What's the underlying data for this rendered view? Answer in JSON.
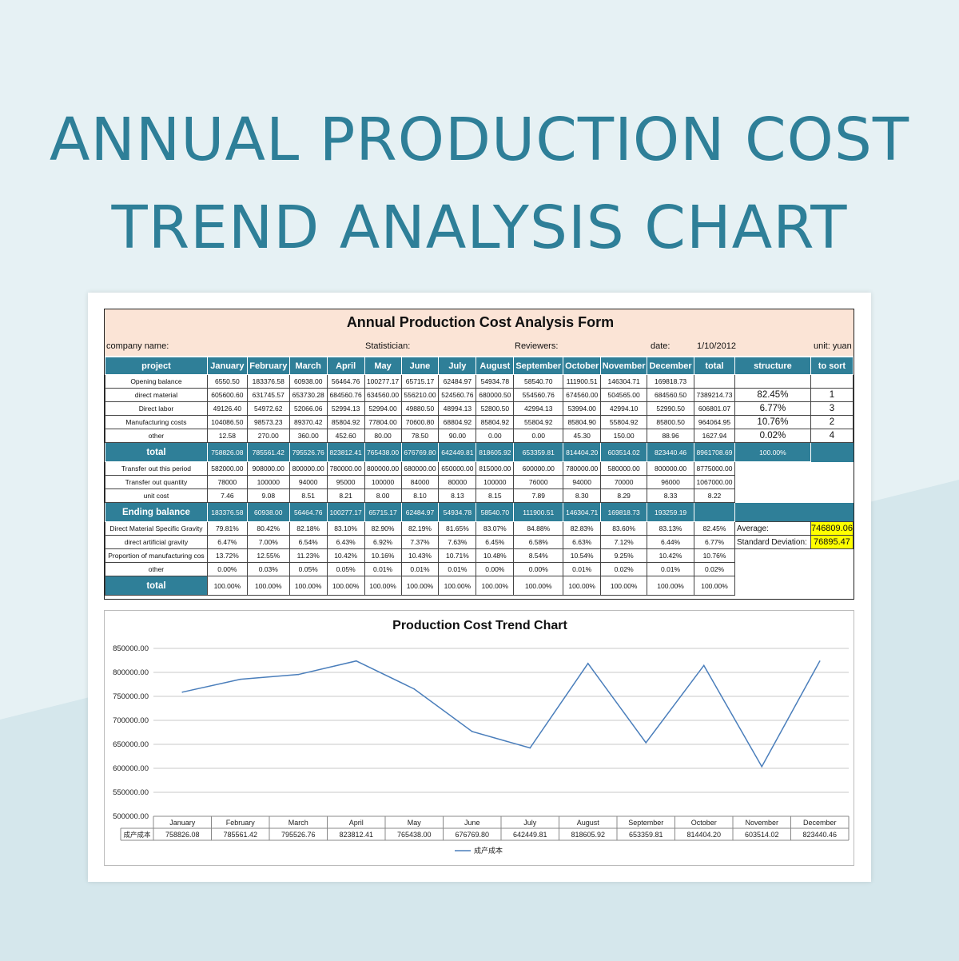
{
  "hero_title_line1": "ANNUAL PRODUCTION COST",
  "hero_title_line2": "TREND ANALYSIS CHART",
  "form": {
    "title": "Annual Production Cost Analysis Form",
    "company_label": "company name:",
    "statistician_label": "Statistician:",
    "reviewers_label": "Reviewers:",
    "date_label": "date:",
    "date_value": "1/10/2012",
    "unit_label": "unit: yuan"
  },
  "headers": [
    "project",
    "January",
    "February",
    "March",
    "April",
    "May",
    "June",
    "July",
    "August",
    "September",
    "October",
    "November",
    "December",
    "total",
    "structure",
    "to sort"
  ],
  "rows": [
    {
      "label": "Opening balance",
      "values": [
        "6550.50",
        "183376.58",
        "60938.00",
        "56464.76",
        "100277.17",
        "65715.17",
        "62484.97",
        "54934.78",
        "58540.70",
        "111900.51",
        "146304.71",
        "169818.73"
      ],
      "total": "",
      "structure": "",
      "sort": ""
    },
    {
      "label": "direct material",
      "values": [
        "605600.60",
        "631745.57",
        "653730.28",
        "684560.76",
        "634560.00",
        "556210.00",
        "524560.76",
        "680000.50",
        "554560.76",
        "674560.00",
        "504565.00",
        "684560.50"
      ],
      "total": "7389214.73",
      "structure": "82.45%",
      "sort": "1"
    },
    {
      "label": "Direct labor",
      "values": [
        "49126.40",
        "54972.62",
        "52066.06",
        "52994.13",
        "52994.00",
        "49880.50",
        "48994.13",
        "52800.50",
        "42994.13",
        "53994.00",
        "42994.10",
        "52990.50"
      ],
      "total": "606801.07",
      "structure": "6.77%",
      "sort": "3"
    },
    {
      "label": "Manufacturing costs",
      "values": [
        "104086.50",
        "98573.23",
        "89370.42",
        "85804.92",
        "77804.00",
        "70600.80",
        "68804.92",
        "85804.92",
        "55804.92",
        "85804.90",
        "55804.92",
        "85800.50"
      ],
      "total": "964064.95",
      "structure": "10.76%",
      "sort": "2"
    },
    {
      "label": "other",
      "values": [
        "12.58",
        "270.00",
        "360.00",
        "452.60",
        "80.00",
        "78.50",
        "90.00",
        "0.00",
        "0.00",
        "45.30",
        "150.00",
        "88.96"
      ],
      "total": "1627.94",
      "structure": "0.02%",
      "sort": "4"
    }
  ],
  "total_row": {
    "label": "total",
    "values": [
      "758826.08",
      "785561.42",
      "795526.76",
      "823812.41",
      "765438.00",
      "676769.80",
      "642449.81",
      "818605.92",
      "653359.81",
      "814404.20",
      "603514.02",
      "823440.46"
    ],
    "total": "8961708.69",
    "structure": "100.00%"
  },
  "mid_rows": [
    {
      "label": "Transfer out this period",
      "values": [
        "582000.00",
        "908000.00",
        "800000.00",
        "780000.00",
        "800000.00",
        "680000.00",
        "650000.00",
        "815000.00",
        "600000.00",
        "780000.00",
        "580000.00",
        "800000.00"
      ],
      "total": "8775000.00"
    },
    {
      "label": "Transfer out quantity",
      "values": [
        "78000",
        "100000",
        "94000",
        "95000",
        "100000",
        "84000",
        "80000",
        "100000",
        "76000",
        "94000",
        "70000",
        "96000"
      ],
      "total": "1067000.00"
    },
    {
      "label": "unit cost",
      "values": [
        "7.46",
        "9.08",
        "8.51",
        "8.21",
        "8.00",
        "8.10",
        "8.13",
        "8.15",
        "7.89",
        "8.30",
        "8.29",
        "8.33"
      ],
      "total": "8.22"
    }
  ],
  "ending_row": {
    "label": "Ending balance",
    "values": [
      "183376.58",
      "60938.00",
      "56464.76",
      "100277.17",
      "65715.17",
      "62484.97",
      "54934.78",
      "58540.70",
      "111900.51",
      "146304.71",
      "169818.73",
      "193259.19"
    ],
    "total": ""
  },
  "gravity_rows": [
    {
      "label": "Direct Material Specific Gravity",
      "values": [
        "79.81%",
        "80.42%",
        "82.18%",
        "83.10%",
        "82.90%",
        "82.19%",
        "81.65%",
        "83.07%",
        "84.88%",
        "82.83%",
        "83.60%",
        "83.13%"
      ],
      "total": "82.45%",
      "side_label": "Average:",
      "side_value": "746809.06"
    },
    {
      "label": "direct artificial gravity",
      "values": [
        "6.47%",
        "7.00%",
        "6.54%",
        "6.43%",
        "6.92%",
        "7.37%",
        "7.63%",
        "6.45%",
        "6.58%",
        "6.63%",
        "7.12%",
        "6.44%"
      ],
      "total": "6.77%",
      "side_label": "Standard Deviation:",
      "side_value": "76895.47"
    },
    {
      "label": "Proportion of manufacturing cos",
      "values": [
        "13.72%",
        "12.55%",
        "11.23%",
        "10.42%",
        "10.16%",
        "10.43%",
        "10.71%",
        "10.48%",
        "8.54%",
        "10.54%",
        "9.25%",
        "10.42%"
      ],
      "total": "10.76%",
      "side_label": "",
      "side_value": ""
    },
    {
      "label": "other",
      "values": [
        "0.00%",
        "0.03%",
        "0.05%",
        "0.05%",
        "0.01%",
        "0.01%",
        "0.01%",
        "0.00%",
        "0.00%",
        "0.01%",
        "0.02%",
        "0.01%"
      ],
      "total": "0.02%",
      "side_label": "",
      "side_value": ""
    }
  ],
  "final_row": {
    "label": "total",
    "values": [
      "100.00%",
      "100.00%",
      "100.00%",
      "100.00%",
      "100.00%",
      "100.00%",
      "100.00%",
      "100.00%",
      "100.00%",
      "100.00%",
      "100.00%",
      "100.00%"
    ],
    "total": "100.00%"
  },
  "colors": {
    "teal": "#2f7f98",
    "peach": "#fbe4d6",
    "highlight": "#ffff00",
    "line": "#4a7ebb"
  },
  "chart_data": {
    "type": "line",
    "title": "Production Cost Trend Chart",
    "categories": [
      "January",
      "February",
      "March",
      "April",
      "May",
      "June",
      "July",
      "August",
      "September",
      "October",
      "November",
      "December"
    ],
    "series": [
      {
        "name": "成产成本",
        "values": [
          758826.08,
          785561.42,
          795526.76,
          823812.41,
          765438.0,
          676769.8,
          642449.81,
          818605.92,
          653359.81,
          814404.2,
          603514.02,
          823440.46
        ]
      }
    ],
    "series_values_text": [
      "758826.08",
      "785561.42",
      "795526.76",
      "823812.41",
      "765438.00",
      "676769.80",
      "642449.81",
      "818605.92",
      "653359.81",
      "814404.20",
      "603514.02",
      "823440.46"
    ],
    "ylim": [
      500000,
      850000
    ],
    "y_ticks": [
      "500000.00",
      "550000.00",
      "600000.00",
      "650000.00",
      "700000.00",
      "750000.00",
      "800000.00",
      "850000.00"
    ],
    "grid": true,
    "legend_position": "bottom"
  }
}
